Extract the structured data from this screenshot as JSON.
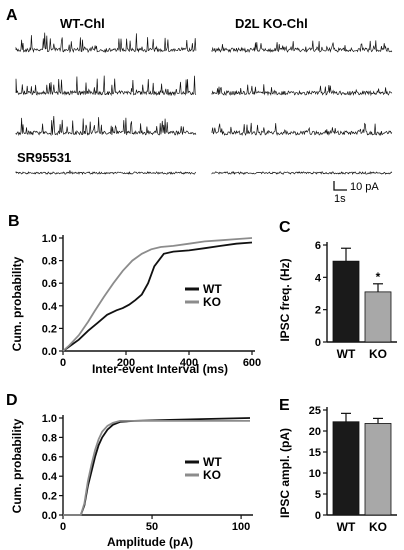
{
  "figure": {
    "panels": [
      "A",
      "B",
      "C",
      "D",
      "E"
    ]
  },
  "panel_a": {
    "wt_title": "WT-Chl",
    "ko_title": "D2L KO-Chl",
    "drug_label": "SR95531",
    "scale_amp": "10 pA",
    "scale_time": "1s"
  },
  "colors": {
    "wt": "#111111",
    "ko": "#8c8c8c",
    "bar_wt": "#1a1a1a",
    "bar_ko": "#a8a8a8"
  },
  "chart_data": [
    {
      "id": "B",
      "type": "line",
      "title": "",
      "xlabel": "Inter-event Interval (ms)",
      "ylabel": "Cum. probability",
      "xlim": [
        0,
        600
      ],
      "ylim": [
        0,
        1.0
      ],
      "xticks": [
        "0",
        "200",
        "400",
        "600"
      ],
      "yticks": [
        "0.0",
        "0.2",
        "0.4",
        "0.6",
        "0.8",
        "1.0"
      ],
      "legend": "right",
      "series": [
        {
          "name": "WT",
          "x": [
            0,
            20,
            50,
            80,
            110,
            140,
            170,
            190,
            210,
            230,
            250,
            270,
            290,
            320,
            350,
            400,
            450,
            500,
            550,
            600
          ],
          "y": [
            0,
            0.04,
            0.1,
            0.18,
            0.25,
            0.32,
            0.36,
            0.38,
            0.41,
            0.45,
            0.5,
            0.6,
            0.75,
            0.86,
            0.88,
            0.89,
            0.91,
            0.93,
            0.95,
            0.96
          ]
        },
        {
          "name": "KO",
          "x": [
            0,
            20,
            50,
            80,
            100,
            130,
            160,
            190,
            220,
            250,
            280,
            310,
            350,
            400,
            450,
            500,
            550,
            600
          ],
          "y": [
            0,
            0.05,
            0.14,
            0.26,
            0.35,
            0.48,
            0.6,
            0.71,
            0.8,
            0.86,
            0.9,
            0.92,
            0.93,
            0.95,
            0.97,
            0.98,
            0.99,
            1.0
          ]
        }
      ]
    },
    {
      "id": "C",
      "type": "bar",
      "title": "",
      "xlabel": "",
      "ylabel": "IPSC freq. (Hz)",
      "categories": [
        "WT",
        "KO"
      ],
      "values": [
        5.0,
        3.1
      ],
      "errors": [
        0.8,
        0.5
      ],
      "ylim": [
        0,
        6
      ],
      "yticks": [
        "0",
        "2",
        "4",
        "6"
      ],
      "annotation": "*"
    },
    {
      "id": "D",
      "type": "line",
      "title": "",
      "xlabel": "Amplitude (pA)",
      "ylabel": "Cum. probability",
      "xlim": [
        0,
        105
      ],
      "ylim": [
        0,
        1.0
      ],
      "xticks": [
        "0",
        "50",
        "100"
      ],
      "yticks": [
        "0.0",
        "0.2",
        "0.4",
        "0.6",
        "0.8",
        "1.0"
      ],
      "legend": "right",
      "series": [
        {
          "name": "WT",
          "x": [
            0,
            10,
            12,
            14,
            16,
            18,
            20,
            22,
            25,
            28,
            32,
            40,
            60,
            80,
            105
          ],
          "y": [
            0,
            0,
            0.1,
            0.3,
            0.45,
            0.6,
            0.72,
            0.8,
            0.88,
            0.93,
            0.96,
            0.97,
            0.98,
            0.99,
            1.0
          ]
        },
        {
          "name": "KO",
          "x": [
            0,
            10,
            12,
            14,
            16,
            18,
            20,
            22,
            25,
            28,
            32,
            40,
            60,
            80,
            105
          ],
          "y": [
            0,
            0,
            0.12,
            0.35,
            0.52,
            0.67,
            0.78,
            0.86,
            0.92,
            0.95,
            0.97,
            0.97,
            0.97,
            0.97,
            0.97
          ]
        }
      ]
    },
    {
      "id": "E",
      "type": "bar",
      "title": "",
      "xlabel": "",
      "ylabel": "IPSC ampl. (pA)",
      "categories": [
        "WT",
        "KO"
      ],
      "values": [
        22.2,
        21.8
      ],
      "errors": [
        2.0,
        1.2
      ],
      "ylim": [
        0,
        25
      ],
      "yticks": [
        "0",
        "5",
        "10",
        "15",
        "20",
        "25"
      ]
    }
  ]
}
